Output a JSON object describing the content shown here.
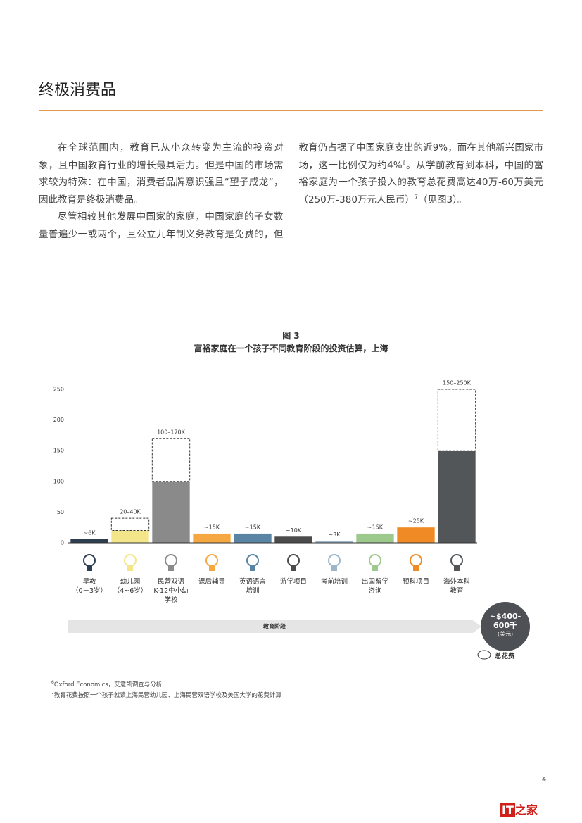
{
  "header": {
    "title": "终极消费品"
  },
  "body": {
    "paragraphs": [
      [
        "在全球范围内，教育已从小众转变为主流的投资对象，且中国教育行业的增长最具活力。但是中国的市场需求较为特殊：在中国，消费者品牌意识强且“望子成龙”，因此教育是终极消费品。"
      ],
      [
        "尽管相较其他发展中国家的家庭，中国家庭的子女数量普遍少一或两个，且公立九年制义务教育是免费的，但教育仍占据了中国家庭支出的近9%，而在其他新兴国家市场，这一比例仅为约4%",
        "6",
        "。从学前教育到本科，中国的富裕家庭为一个孩子投入的教育总花费高达40万-60万美元（250万-380万元人民币）",
        "7",
        "（见图3）。"
      ]
    ]
  },
  "chart_data": {
    "type": "bar",
    "figure_label": "图 3",
    "title": "富裕家庭在一个孩子不同教育阶段的投资估算，上海",
    "categories": [
      "早教\n（0－3岁）",
      "幼儿园\n（4~6岁）",
      "民营双语\nK-12中小幼\n学校",
      "课后辅导",
      "英语语言\n培训",
      "游学项目",
      "考前培训",
      "出国留学\n咨询",
      "预科项目",
      "海外本科\n教育"
    ],
    "colors": [
      "#2d3e50",
      "#f3e58a",
      "#8a8a8a",
      "#f5a841",
      "#5a84a3",
      "#4b4b4b",
      "#9bb5ca",
      "#9dca8c",
      "#f08a24",
      "#535659"
    ],
    "series": [
      {
        "values": [
          6,
          20,
          100,
          15,
          15,
          10,
          3,
          15,
          25,
          150
        ],
        "value_labels": [
          "~6K",
          "20–40K",
          "100–170K",
          "~15K",
          "~15K",
          "~10K",
          "~3K",
          "~15K",
          "~25K",
          "150–250K"
        ]
      },
      {
        "values": [
          null,
          40,
          170,
          null,
          null,
          null,
          null,
          null,
          null,
          250
        ]
      }
    ],
    "ylim": [
      0,
      250
    ],
    "yticks": [
      0,
      50,
      100,
      150,
      200,
      250
    ],
    "xlabel": "教育阶段",
    "total": {
      "text": "~$400-\n600千",
      "unit": "(美元)",
      "caption": "总花费"
    }
  },
  "footnotes": [
    {
      "mark": "6",
      "text": "Oxford Economics，艾意凯调查与分析"
    },
    {
      "mark": "7",
      "text": "教育花费按照一个孩子就读上海民营幼儿园、上海民营双语学校及美国大学的花费计算"
    }
  ],
  "page_number": "4",
  "logo": {
    "mark": "IT",
    "text": "之家"
  }
}
